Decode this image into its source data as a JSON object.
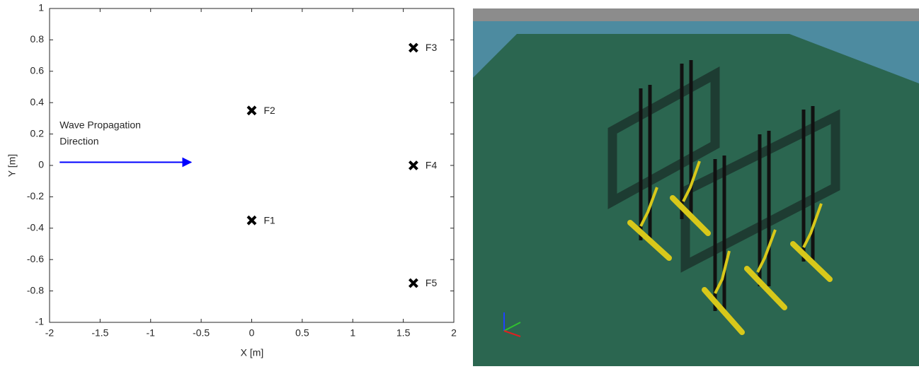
{
  "chart_data": {
    "type": "scatter",
    "x_label": "X [m]",
    "y_label": "Y [m]",
    "xlim": [
      -2,
      2
    ],
    "ylim": [
      -1,
      1
    ],
    "xticks": [
      -2,
      -1.5,
      -1,
      -0.5,
      0,
      0.5,
      1,
      1.5,
      2
    ],
    "yticks": [
      -1,
      -0.8,
      -0.6,
      -0.4,
      -0.2,
      0,
      0.2,
      0.4,
      0.6,
      0.8,
      1
    ],
    "series": [
      {
        "color": "#000000",
        "marker": "x",
        "x": [
          0,
          0,
          1.6,
          1.6,
          1.6
        ],
        "values": [
          -0.35,
          0.35,
          0.75,
          0,
          -0.75
        ],
        "labels": [
          "F1",
          "F2",
          "F3",
          "F4",
          "F5"
        ]
      }
    ],
    "annotation": {
      "text": [
        "Wave Propagation",
        "Direction"
      ],
      "color": "#0000ff",
      "arrow_x": [
        -1.9,
        -0.6
      ],
      "arrow_y": 0.02
    }
  }
}
